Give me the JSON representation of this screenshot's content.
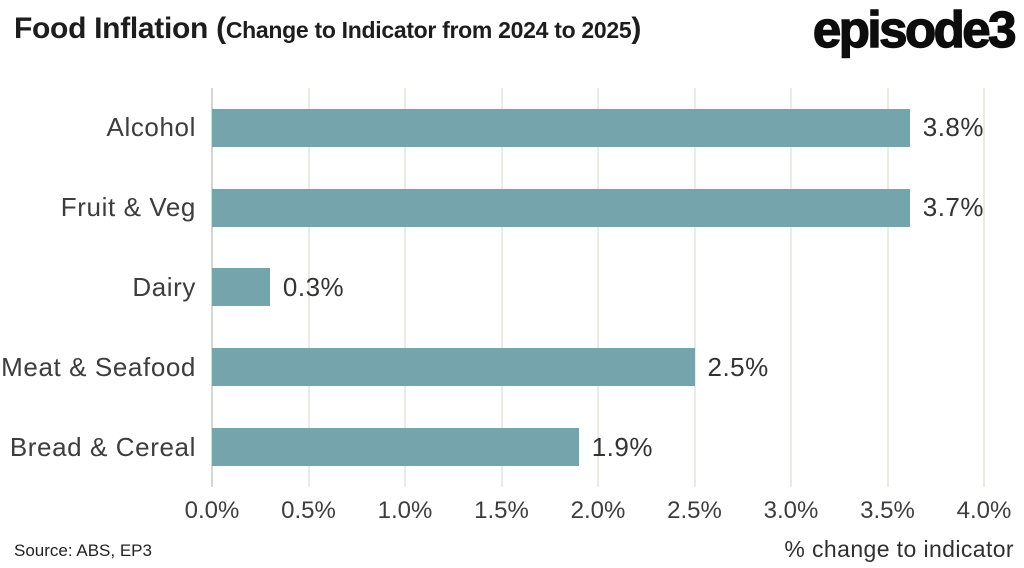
{
  "header": {
    "title_main": "Food Inflation ",
    "title_paren_open": "(",
    "title_sub": "Change to Indicator from 2024 to 2025",
    "title_paren_close": ")",
    "logo": "episode3"
  },
  "chart_data": {
    "type": "bar",
    "orientation": "horizontal",
    "title": "Food Inflation (Change to Indicator from 2024 to 2025)",
    "categories": [
      "Alcohol",
      "Fruit & Veg",
      "Dairy",
      "Meat & Seafood",
      "Bread & Cereal"
    ],
    "values": [
      3.8,
      3.7,
      0.3,
      2.5,
      1.9
    ],
    "value_labels": [
      "3.8%",
      "3.7%",
      "0.3%",
      "2.5%",
      "1.9%"
    ],
    "xlim": [
      0,
      4.0
    ],
    "x_tick_values": [
      0,
      0.5,
      1.0,
      1.5,
      2.0,
      2.5,
      3.0,
      3.5,
      4.0
    ],
    "x_tick_labels": [
      "0.0%",
      "0.5%",
      "1.0%",
      "1.5%",
      "2.0%",
      "2.5%",
      "3.0%",
      "3.5%",
      "4.0%"
    ],
    "xlabel": "% change to indicator",
    "grid": true,
    "legend": false,
    "bar_color": "#76a4ac",
    "gridline_color": "#edeae4",
    "axis_line_color": "#d7d5d0"
  },
  "footer": {
    "source": "Source: ABS, EP3"
  }
}
